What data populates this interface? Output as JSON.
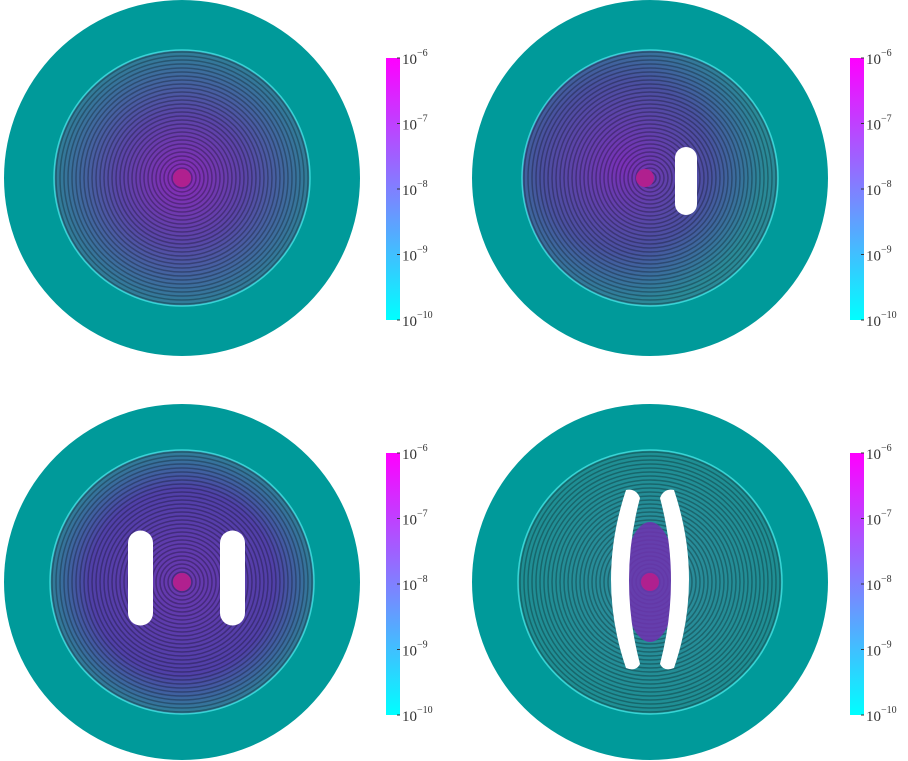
{
  "panels": [
    {
      "colorbar": {
        "ticks": [
          {
            "base": "10",
            "exponent": "−6"
          },
          {
            "base": "10",
            "exponent": "−7"
          },
          {
            "base": "10",
            "exponent": "−8"
          },
          {
            "base": "10",
            "exponent": "−9"
          },
          {
            "base": "10",
            "exponent": "−10"
          }
        ]
      }
    },
    {
      "colorbar": {
        "ticks": [
          {
            "base": "10",
            "exponent": "−6"
          },
          {
            "base": "10",
            "exponent": "−7"
          },
          {
            "base": "10",
            "exponent": "−8"
          },
          {
            "base": "10",
            "exponent": "−9"
          },
          {
            "base": "10",
            "exponent": "−10"
          }
        ]
      }
    },
    {
      "colorbar": {
        "ticks": [
          {
            "base": "10",
            "exponent": "−6"
          },
          {
            "base": "10",
            "exponent": "−7"
          },
          {
            "base": "10",
            "exponent": "−8"
          },
          {
            "base": "10",
            "exponent": "−9"
          },
          {
            "base": "10",
            "exponent": "−10"
          }
        ]
      }
    },
    {
      "colorbar": {
        "ticks": [
          {
            "base": "10",
            "exponent": "−6"
          },
          {
            "base": "10",
            "exponent": "−7"
          },
          {
            "base": "10",
            "exponent": "−8"
          },
          {
            "base": "10",
            "exponent": "−9"
          },
          {
            "base": "10",
            "exponent": "−10"
          }
        ]
      }
    }
  ]
}
